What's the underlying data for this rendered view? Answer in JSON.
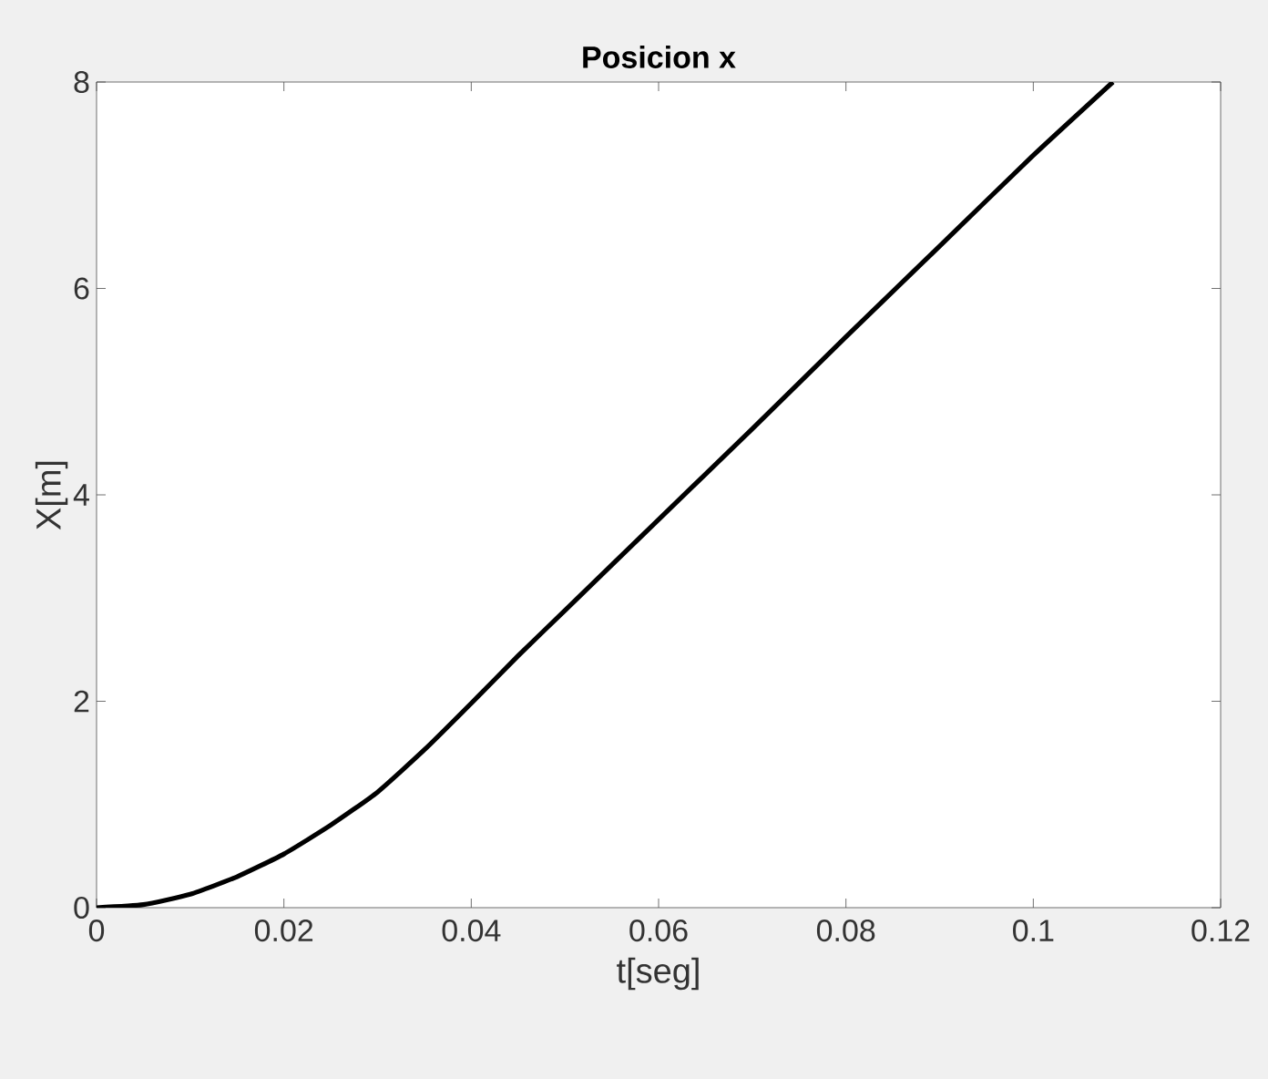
{
  "chart_data": {
    "type": "line",
    "title": "Posicion x",
    "xlabel": "t[seg]",
    "ylabel": "X[m]",
    "x": [
      0,
      0.005,
      0.01,
      0.015,
      0.02,
      0.025,
      0.03,
      0.035,
      0.04,
      0.045,
      0.05,
      0.06,
      0.07,
      0.08,
      0.09,
      0.1,
      0.1085
    ],
    "series": [
      {
        "color": "#000000",
        "values": [
          0,
          0.03,
          0.13,
          0.3,
          0.52,
          0.8,
          1.12,
          1.53,
          1.98,
          2.44,
          2.88,
          3.76,
          4.64,
          5.53,
          6.41,
          7.29,
          8.0
        ]
      }
    ],
    "xlim": [
      0,
      0.12
    ],
    "ylim": [
      0,
      8
    ],
    "xticks": [
      0,
      0.02,
      0.04,
      0.06,
      0.08,
      0.1,
      0.12
    ],
    "yticks": [
      0,
      2,
      4,
      6,
      8
    ],
    "grid": false,
    "marker": "none",
    "line_style": "solid"
  }
}
